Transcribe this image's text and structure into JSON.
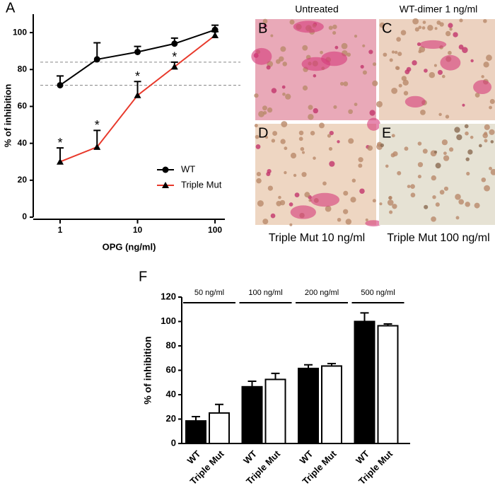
{
  "chart_data": [
    {
      "type": "line",
      "panel": "A",
      "xlabel": "OPG (ng/ml)",
      "ylabel": "% of inhibition",
      "xlog": true,
      "x": [
        1,
        3,
        10,
        30,
        100
      ],
      "series": [
        {
          "name": "WT",
          "color": "#000000",
          "marker": "circle",
          "values": [
            71.5,
            85.5,
            89.5,
            94,
            101.5
          ],
          "errors": [
            5,
            9,
            3,
            3,
            2.5
          ]
        },
        {
          "name": "Triple Mut",
          "color": "#e8392b",
          "marker": "triangle",
          "values": [
            30,
            38,
            66,
            81.5,
            98.5
          ],
          "errors": [
            7.5,
            9,
            7.5,
            2.5,
            2
          ]
        }
      ],
      "annotations": [
        {
          "text": "*",
          "x": 1
        },
        {
          "text": "*",
          "x": 3
        },
        {
          "text": "*",
          "x": 10
        },
        {
          "text": "*",
          "x": 30
        }
      ],
      "hlines": [
        84,
        71.5
      ],
      "xlim": [
        0.45,
        134
      ],
      "xticks": [
        1,
        10,
        100
      ],
      "ylim": [
        0,
        110
      ],
      "yticks": [
        0,
        20,
        40,
        60,
        80,
        100
      ],
      "legend": "right"
    },
    {
      "type": "bar",
      "panel": "F",
      "ylabel": "% of inhibition",
      "groups": [
        "50 ng/ml",
        "100 ng/ml",
        "200 ng/ml",
        "500 ng/ml"
      ],
      "categories": [
        "WT",
        "Triple Mut",
        "WT",
        "Triple Mut",
        "WT",
        "Triple Mut",
        "WT",
        "Triple Mut"
      ],
      "values": [
        18.5,
        25,
        46.5,
        52.5,
        61.5,
        63.5,
        100,
        96.5
      ],
      "errors": [
        3.5,
        7,
        4.5,
        5,
        3,
        2,
        7,
        1.5
      ],
      "colors": [
        "#000000",
        "#ffffff",
        "#000000",
        "#ffffff",
        "#000000",
        "#ffffff",
        "#000000",
        "#ffffff"
      ],
      "ylim": [
        0,
        120
      ],
      "yticks": [
        0,
        20,
        40,
        60,
        80,
        100,
        120
      ]
    }
  ],
  "micrographs": [
    {
      "letter": "B",
      "caption": "Untreated"
    },
    {
      "letter": "C",
      "caption": "WT-dimer 1 ng/ml"
    },
    {
      "letter": "D",
      "caption": "Triple Mut 10 ng/ml"
    },
    {
      "letter": "E",
      "caption": "Triple Mut 100 ng/ml"
    }
  ]
}
